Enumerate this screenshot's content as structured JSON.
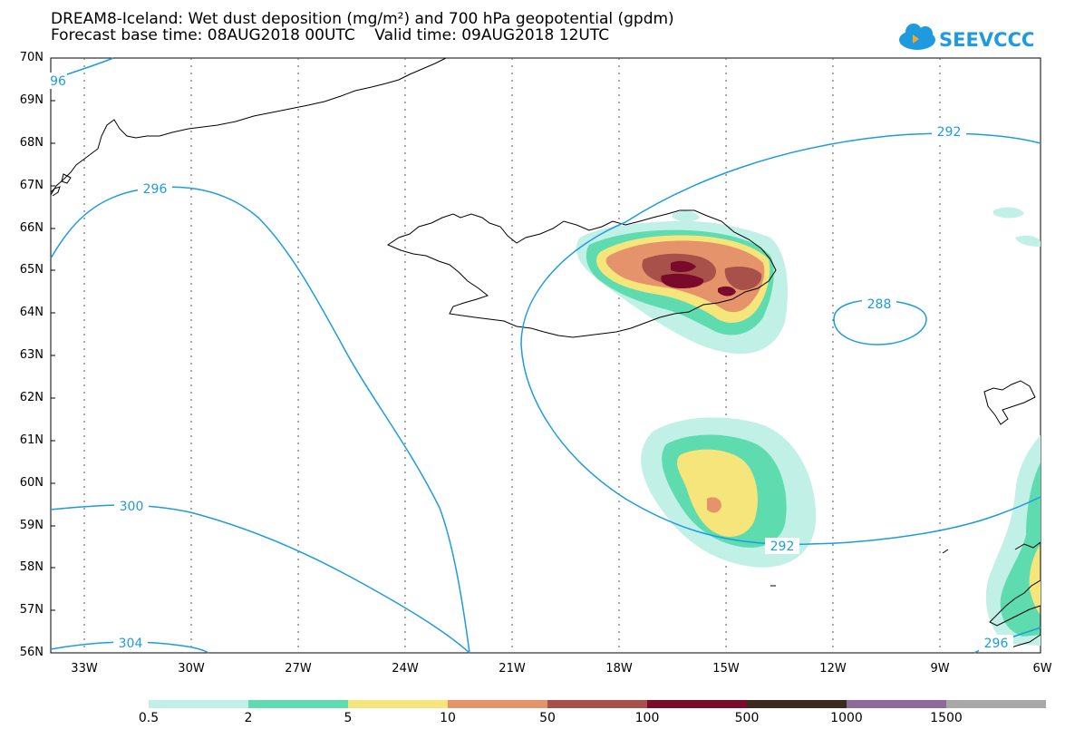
{
  "header": {
    "title_line1": "DREAM8-Iceland: Wet dust deposition (mg/m²) and 700 hPa geopotential (gpdm)",
    "title_line2": "Forecast base time: 08AUG2018 00UTC    Valid time: 09AUG2018 12UTC"
  },
  "logo": {
    "text": "SEEVCCC",
    "icon": "cloud-icon",
    "color": "#1e9be0"
  },
  "map": {
    "lat_labels": [
      "70N",
      "69N",
      "68N",
      "67N",
      "66N",
      "65N",
      "64N",
      "63N",
      "62N",
      "61N",
      "60N",
      "59N",
      "58N",
      "57N",
      "56N"
    ],
    "lon_labels": [
      "33W",
      "30W",
      "27W",
      "24W",
      "21W",
      "18W",
      "15W",
      "12W",
      "9W",
      "6W"
    ],
    "contour_color": "#1e9be0",
    "contour_labels": [
      "96",
      "296",
      "292",
      "288",
      "300",
      "292",
      "304",
      "296"
    ]
  },
  "legend": {
    "colors": [
      "#c1f0e6",
      "#5fdcaf",
      "#f5e57a",
      "#e5936a",
      "#a8504a",
      "#7a0a2a",
      "#3c2a1e",
      "#8d6a9a",
      "#a8a8a8"
    ],
    "labels": [
      "0.5",
      "2",
      "5",
      "10",
      "50",
      "100",
      "500",
      "1000",
      "1500"
    ]
  }
}
